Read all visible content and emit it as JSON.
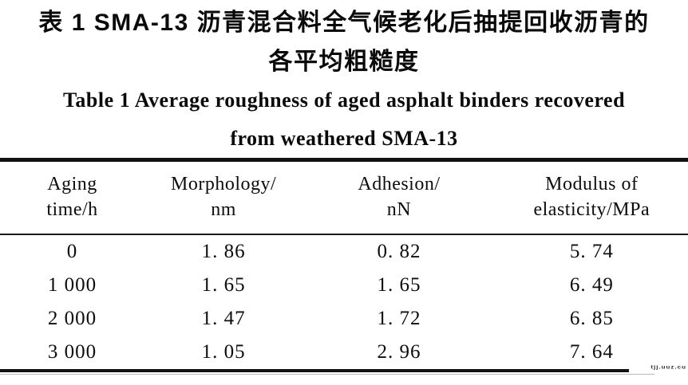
{
  "page": {
    "background": "#ffffff",
    "text_color": "#0d0d0d",
    "rule_color": "#121212"
  },
  "caption_zh": [
    "表 1  SMA-13 沥青混合料全气候老化后抽提回收沥青的",
    "各平均粗糙度"
  ],
  "caption_en": [
    "Table 1  Average roughness of aged asphalt binders recovered",
    "from weathered SMA-13"
  ],
  "table": {
    "headers": [
      {
        "line1": "Aging",
        "line2": "time/h"
      },
      {
        "line1": "Morphology/",
        "line2": "nm"
      },
      {
        "line1": "Adhesion/",
        "line2": "nN"
      },
      {
        "line1": "Modulus of",
        "line2": "elasticity/MPa"
      }
    ],
    "rows": [
      [
        "0",
        "1. 86",
        "0. 82",
        "5. 74"
      ],
      [
        "1 000",
        "1. 65",
        "1. 65",
        "6. 49"
      ],
      [
        "2 000",
        "1. 47",
        "1. 72",
        "6. 85"
      ],
      [
        "3 000",
        "1. 05",
        "2. 96",
        "7. 64"
      ]
    ]
  },
  "watermark": {
    "text": "tjj.uuz.cu",
    "color": "#2c3135"
  },
  "chart_data": {
    "type": "table",
    "title_zh": "表1 SMA-13沥青混合料全气候老化后抽提回收沥青的各平均粗糙度",
    "title_en": "Table 1 Average roughness of aged asphalt binders recovered from weathered SMA-13",
    "columns": [
      "Aging time/h",
      "Morphology/nm",
      "Adhesion/nN",
      "Modulus of elasticity/MPa"
    ],
    "rows": [
      [
        0,
        1.86,
        0.82,
        5.74
      ],
      [
        1000,
        1.65,
        1.65,
        6.49
      ],
      [
        2000,
        1.47,
        1.72,
        6.85
      ],
      [
        3000,
        1.05,
        2.96,
        7.64
      ]
    ]
  }
}
